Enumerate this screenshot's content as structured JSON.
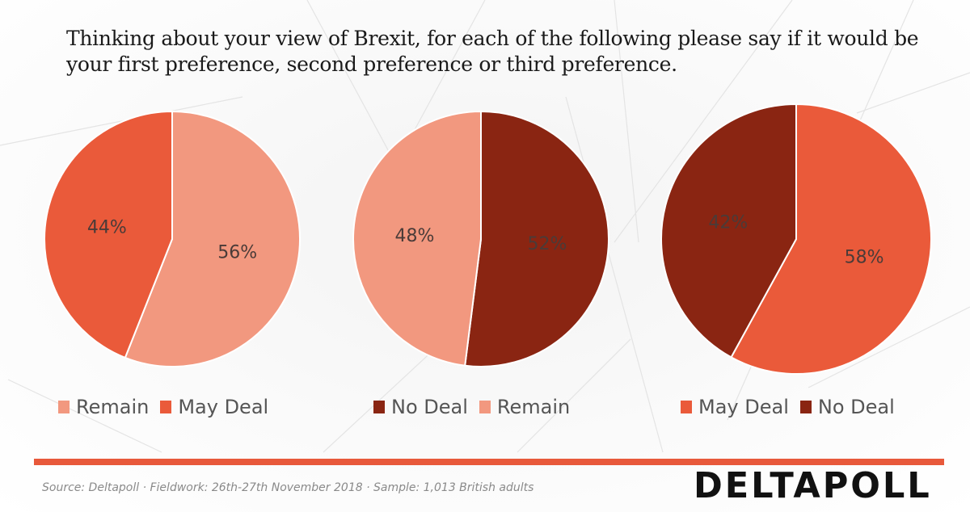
{
  "title": "Thinking about your view of Brexit, for each of the following please say if it would be your first preference, second preference or third preference.",
  "colors": {
    "remain": "#f2987f",
    "may_deal": "#ea5a3a",
    "no_deal": "#8a2512",
    "accent_rule": "#e8593b",
    "label_text": "#4a3b38"
  },
  "chart_data": [
    {
      "type": "pie",
      "title": "",
      "slices": [
        {
          "name": "Remain",
          "value": 56,
          "label": "56%",
          "color": "#f2987f"
        },
        {
          "name": "May Deal",
          "value": 44,
          "label": "44%",
          "color": "#ea5a3a"
        }
      ],
      "legend": [
        {
          "name": "Remain",
          "color": "#f2987f"
        },
        {
          "name": "May Deal",
          "color": "#ea5a3a"
        }
      ],
      "legend_position": "bottom"
    },
    {
      "type": "pie",
      "title": "",
      "slices": [
        {
          "name": "No Deal",
          "value": 52,
          "label": "52%",
          "color": "#8a2512"
        },
        {
          "name": "Remain",
          "value": 48,
          "label": "48%",
          "color": "#f2987f"
        }
      ],
      "legend": [
        {
          "name": "No Deal",
          "color": "#8a2512"
        },
        {
          "name": "Remain",
          "color": "#f2987f"
        }
      ],
      "legend_position": "bottom"
    },
    {
      "type": "pie",
      "title": "",
      "slices": [
        {
          "name": "May Deal",
          "value": 58,
          "label": "58%",
          "color": "#ea5a3a"
        },
        {
          "name": "No Deal",
          "value": 42,
          "label": "42%",
          "color": "#8a2512"
        }
      ],
      "legend": [
        {
          "name": "May Deal",
          "color": "#ea5a3a"
        },
        {
          "name": "No Deal",
          "color": "#8a2512"
        }
      ],
      "legend_position": "bottom"
    }
  ],
  "footer": {
    "source": "Source: Deltapoll · Fieldwork:  26th-27th November 2018 · Sample: 1,013 British adults",
    "logo": "DELTAPOLL"
  }
}
